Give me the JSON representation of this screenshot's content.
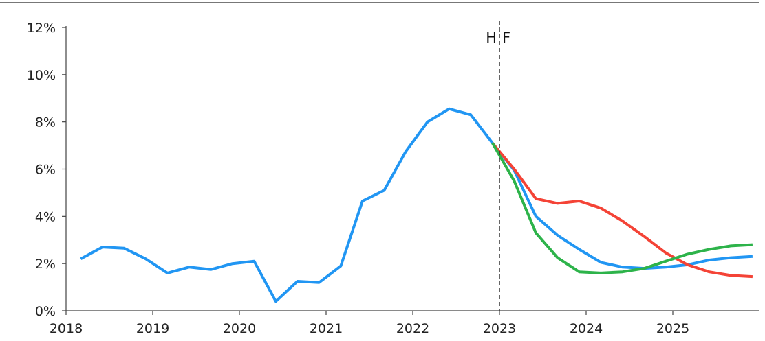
{
  "chart_data": {
    "type": "line",
    "title": "",
    "xlabel": "",
    "ylabel": "",
    "x_ticks": [
      "2018",
      "2019",
      "2020",
      "2021",
      "2022",
      "2023",
      "2024",
      "2025"
    ],
    "y_ticks": [
      "0%",
      "2%",
      "4%",
      "6%",
      "8%",
      "10%",
      "12%"
    ],
    "xlim": [
      2018,
      2026
    ],
    "ylim": [
      0,
      12
    ],
    "y_unit": "%",
    "grid": false,
    "legend": "none",
    "vline": {
      "x": 2023,
      "left_label": "H",
      "right_label": "F",
      "style": "dashed"
    },
    "series": [
      {
        "color": "#2196F3",
        "x": [
          2018.17,
          2018.42,
          2018.67,
          2018.92,
          2019.17,
          2019.42,
          2019.67,
          2019.92,
          2020.17,
          2020.42,
          2020.67,
          2020.92,
          2021.17,
          2021.42,
          2021.67,
          2021.92,
          2022.17,
          2022.42,
          2022.67,
          2022.92,
          2023.17,
          2023.42,
          2023.67,
          2023.92,
          2024.17,
          2024.42,
          2024.67,
          2024.92,
          2025.17,
          2025.42,
          2025.67,
          2025.92
        ],
        "values": [
          2.2,
          2.7,
          2.65,
          2.2,
          1.6,
          1.85,
          1.75,
          2.0,
          2.1,
          0.4,
          1.25,
          1.2,
          1.9,
          4.65,
          5.1,
          6.75,
          8.0,
          8.55,
          8.3,
          7.1,
          5.95,
          4.0,
          3.2,
          2.6,
          2.05,
          1.85,
          1.8,
          1.85,
          1.95,
          2.15,
          2.25,
          2.3
        ]
      },
      {
        "color": "#F44336",
        "x": [
          2022.92,
          2023.17,
          2023.42,
          2023.67,
          2023.92,
          2024.17,
          2024.42,
          2024.67,
          2024.92,
          2025.17,
          2025.42,
          2025.67,
          2025.92
        ],
        "values": [
          7.1,
          6.0,
          4.75,
          4.55,
          4.65,
          4.35,
          3.8,
          3.15,
          2.45,
          1.95,
          1.65,
          1.5,
          1.45
        ]
      },
      {
        "color": "#2DB34A",
        "x": [
          2022.92,
          2023.17,
          2023.42,
          2023.67,
          2023.92,
          2024.17,
          2024.42,
          2024.67,
          2024.92,
          2025.17,
          2025.42,
          2025.67,
          2025.92
        ],
        "values": [
          7.1,
          5.5,
          3.3,
          2.25,
          1.65,
          1.6,
          1.65,
          1.8,
          2.1,
          2.4,
          2.6,
          2.75,
          2.8
        ]
      }
    ]
  }
}
